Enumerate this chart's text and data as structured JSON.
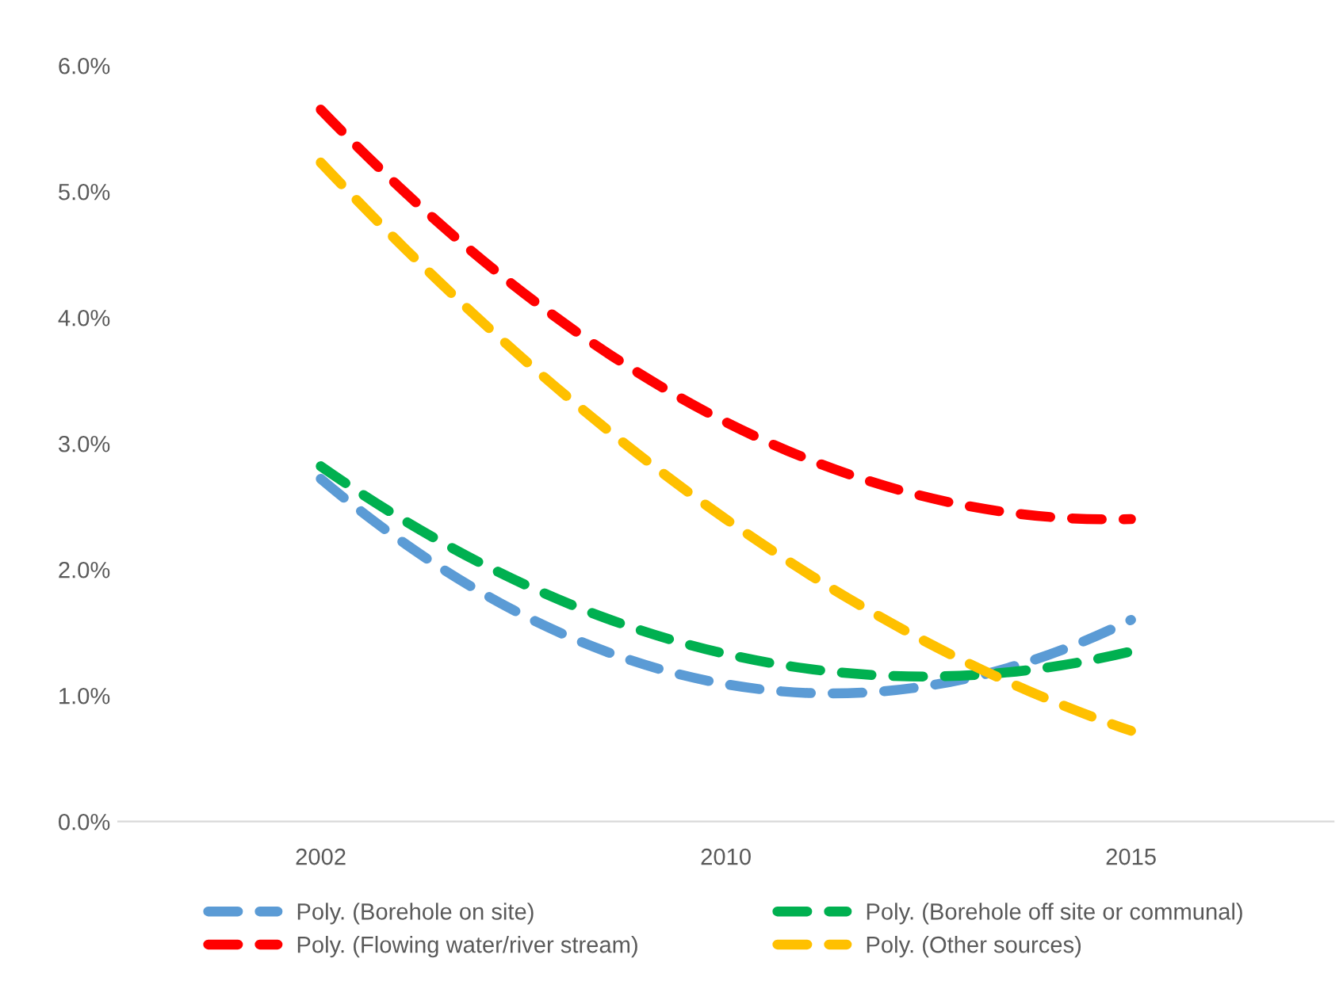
{
  "chart_data": {
    "type": "line",
    "categories": [
      "2002",
      "2010",
      "2015"
    ],
    "series": [
      {
        "name": "Poly. (Borehole on site)",
        "color": "#5b9bd5",
        "values": [
          2.72,
          1.09,
          1.6
        ]
      },
      {
        "name": "Poly. (Borehole off site or communal)",
        "color": "#00b050",
        "values": [
          2.82,
          1.33,
          1.35
        ]
      },
      {
        "name": "Poly. (Flowing water/river stream)",
        "color": "#ff0000",
        "values": [
          5.65,
          3.17,
          2.4
        ]
      },
      {
        "name": "Poly. (Other sources)",
        "color": "#ffc000",
        "values": [
          5.23,
          2.4,
          0.72
        ]
      }
    ],
    "ylim": [
      0,
      6
    ],
    "yticks": [
      {
        "value": 0,
        "label": "0.0%"
      },
      {
        "value": 1,
        "label": "1.0%"
      },
      {
        "value": 2,
        "label": "2.0%"
      },
      {
        "value": 3,
        "label": "3.0%"
      },
      {
        "value": 4,
        "label": "4.0%"
      },
      {
        "value": 5,
        "label": "5.0%"
      },
      {
        "value": 6,
        "label": "6.0%"
      }
    ],
    "grid": false,
    "legend": "bottom",
    "line_style": "dashed",
    "marker": "none"
  }
}
